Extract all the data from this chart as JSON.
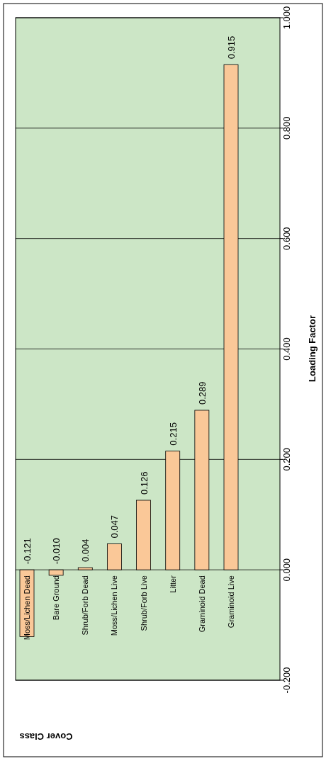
{
  "chart_data": {
    "type": "bar",
    "xlabel": "Cover Class",
    "ylabel": "Loading Factor",
    "categories": [
      "Moss/Lichen Dead",
      "Bare Ground",
      "Shrub/Forb Dead",
      "Moss/Lichen Live",
      "Shrub/Forb Live",
      "Litter",
      "Graminoid Dead",
      "Graminoid Live"
    ],
    "values": [
      -0.121,
      -0.01,
      0.004,
      0.047,
      0.126,
      0.215,
      0.289,
      0.915
    ],
    "value_labels": [
      "-0.121",
      "-0.010",
      "0.004",
      "0.047",
      "0.126",
      "0.215",
      "0.289",
      "0.915"
    ],
    "color": "#fac898",
    "ylim": [
      -0.2,
      1.0
    ],
    "yticks": [
      {
        "value": -0.2,
        "label": "-0.200"
      },
      {
        "value": 0,
        "label": "0.000"
      },
      {
        "value": 0.2,
        "label": "0.200"
      },
      {
        "value": 0.4,
        "label": "0.400"
      },
      {
        "value": 0.6,
        "label": "0.600"
      },
      {
        "value": 0.8,
        "label": "0.800"
      },
      {
        "value": 1.0,
        "label": "1.000"
      }
    ],
    "grid": "y"
  }
}
